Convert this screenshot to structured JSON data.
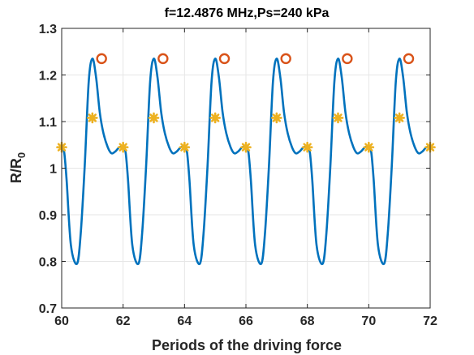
{
  "chart_data": {
    "type": "line",
    "title": "f=12.4876 MHz,Ps=240 kPa",
    "xlabel": "Periods of the driving force",
    "ylabel": {
      "main": "R/R",
      "subscript": "0"
    },
    "xlim": [
      60,
      72
    ],
    "ylim": [
      0.7,
      1.3
    ],
    "xticks": [
      "60",
      "62",
      "64",
      "66",
      "68",
      "70",
      "72"
    ],
    "yticks": [
      "0.7",
      "0.8",
      "0.9",
      "1",
      "1.1",
      "1.2",
      "1.3"
    ],
    "grid": true,
    "period": 2,
    "series": [
      {
        "kind": "curve",
        "color": "#0072BD",
        "profile": {
          "phase": [
            0.0,
            0.08,
            0.16,
            0.3,
            0.5,
            0.62,
            0.75,
            0.88,
            1.0,
            1.12,
            1.24,
            1.36,
            1.5,
            1.62,
            1.75,
            1.88,
            2.0
          ],
          "value": [
            1.045,
            1.035,
            0.975,
            0.835,
            0.795,
            0.86,
            1.005,
            1.185,
            1.235,
            1.195,
            1.12,
            1.075,
            1.045,
            1.032,
            1.036,
            1.045,
            1.045
          ]
        }
      },
      {
        "kind": "markers",
        "marker": "circle",
        "color": "#D95319",
        "x": [
          61.3,
          63.3,
          65.3,
          67.3,
          69.3,
          71.3
        ],
        "y": [
          1.235,
          1.235,
          1.235,
          1.235,
          1.235,
          1.235
        ]
      },
      {
        "kind": "markers",
        "marker": "star",
        "color": "#EDB120",
        "x": [
          60.0,
          61.0,
          62.0,
          63.0,
          64.0,
          65.0,
          66.0,
          67.0,
          68.0,
          69.0,
          70.0,
          71.0,
          72.0
        ],
        "y": [
          1.045,
          1.108,
          1.045,
          1.108,
          1.045,
          1.108,
          1.045,
          1.108,
          1.045,
          1.108,
          1.045,
          1.108,
          1.045
        ]
      }
    ]
  }
}
